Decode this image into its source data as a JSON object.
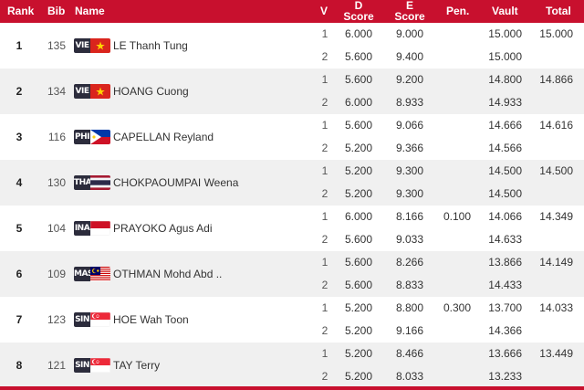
{
  "header": {
    "rank": "Rank",
    "bib": "Bib",
    "name": "Name",
    "v": "V",
    "d_line1": "D",
    "d_line2": "Score",
    "e_line1": "E",
    "e_line2": "Score",
    "pen": "Pen.",
    "vault": "Vault",
    "total": "Total"
  },
  "colors": {
    "accent": "#c8102e",
    "row_alt": "#f0f0f0"
  },
  "rows": [
    {
      "rank": "1",
      "bib": "135",
      "country": "VIE",
      "flag_icon": "vietnam-flag-icon",
      "name": "LE Thanh Tung",
      "vaults": [
        {
          "v": "1",
          "d": "6.000",
          "e": "9.000",
          "pen": "",
          "vault": "15.000"
        },
        {
          "v": "2",
          "d": "5.600",
          "e": "9.400",
          "pen": "",
          "vault": "15.000"
        }
      ],
      "total": "15.000"
    },
    {
      "rank": "2",
      "bib": "134",
      "country": "VIE",
      "flag_icon": "vietnam-flag-icon",
      "name": "HOANG Cuong",
      "vaults": [
        {
          "v": "1",
          "d": "5.600",
          "e": "9.200",
          "pen": "",
          "vault": "14.800"
        },
        {
          "v": "2",
          "d": "6.000",
          "e": "8.933",
          "pen": "",
          "vault": "14.933"
        }
      ],
      "total": "14.866"
    },
    {
      "rank": "3",
      "bib": "116",
      "country": "PHI",
      "flag_icon": "philippines-flag-icon",
      "name": "CAPELLAN Reyland",
      "vaults": [
        {
          "v": "1",
          "d": "5.600",
          "e": "9.066",
          "pen": "",
          "vault": "14.666"
        },
        {
          "v": "2",
          "d": "5.200",
          "e": "9.366",
          "pen": "",
          "vault": "14.566"
        }
      ],
      "total": "14.616"
    },
    {
      "rank": "4",
      "bib": "130",
      "country": "THA",
      "flag_icon": "thailand-flag-icon",
      "name": "CHOKPAOUMPAI Weena",
      "vaults": [
        {
          "v": "1",
          "d": "5.200",
          "e": "9.300",
          "pen": "",
          "vault": "14.500"
        },
        {
          "v": "2",
          "d": "5.200",
          "e": "9.300",
          "pen": "",
          "vault": "14.500"
        }
      ],
      "total": "14.500"
    },
    {
      "rank": "5",
      "bib": "104",
      "country": "INA",
      "flag_icon": "indonesia-flag-icon",
      "name": "PRAYOKO Agus Adi",
      "vaults": [
        {
          "v": "1",
          "d": "6.000",
          "e": "8.166",
          "pen": "0.100",
          "vault": "14.066"
        },
        {
          "v": "2",
          "d": "5.600",
          "e": "9.033",
          "pen": "",
          "vault": "14.633"
        }
      ],
      "total": "14.349"
    },
    {
      "rank": "6",
      "bib": "109",
      "country": "MAS",
      "flag_icon": "malaysia-flag-icon",
      "name": "OTHMAN Mohd Abd ..",
      "vaults": [
        {
          "v": "1",
          "d": "5.600",
          "e": "8.266",
          "pen": "",
          "vault": "13.866"
        },
        {
          "v": "2",
          "d": "5.600",
          "e": "8.833",
          "pen": "",
          "vault": "14.433"
        }
      ],
      "total": "14.149"
    },
    {
      "rank": "7",
      "bib": "123",
      "country": "SIN",
      "flag_icon": "singapore-flag-icon",
      "name": "HOE Wah Toon",
      "vaults": [
        {
          "v": "1",
          "d": "5.200",
          "e": "8.800",
          "pen": "0.300",
          "vault": "13.700"
        },
        {
          "v": "2",
          "d": "5.200",
          "e": "9.166",
          "pen": "",
          "vault": "14.366"
        }
      ],
      "total": "14.033"
    },
    {
      "rank": "8",
      "bib": "121",
      "country": "SIN",
      "flag_icon": "singapore-flag-icon",
      "name": "TAY Terry",
      "vaults": [
        {
          "v": "1",
          "d": "5.200",
          "e": "8.466",
          "pen": "",
          "vault": "13.666"
        },
        {
          "v": "2",
          "d": "5.200",
          "e": "8.033",
          "pen": "",
          "vault": "13.233"
        }
      ],
      "total": "13.449"
    }
  ]
}
